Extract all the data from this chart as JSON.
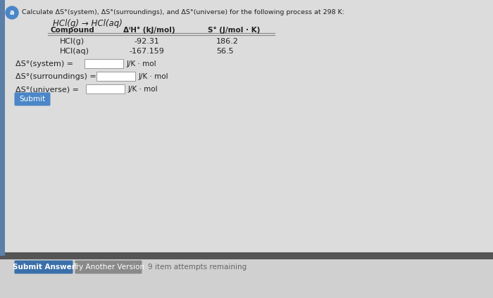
{
  "bg_upper": "#dcdcdc",
  "bg_lower": "#d0d0d0",
  "divider_color": "#555555",
  "left_bar_color": "#5a7fa8",
  "title_circle_color": "#4a86c8",
  "title_label": "a",
  "header_text": "Calculate ΔS°(system), ΔS°(surroundings), and ΔS°(universe) for the following process at 298 K:",
  "reaction": "HCl(g) → HCl(aq)",
  "col_compound": "Compound",
  "col_dH": "ΔⁱH° (kJ/mol)",
  "col_S": "S° (J/mol · K)",
  "row1_compound": "HCl(g)",
  "row1_dH": "-92.31",
  "row1_S": "186.2",
  "row2_compound": "HCl(aq)",
  "row2_dH": "-167.159",
  "row2_S": "56.5",
  "label_system": "ΔS°(system) =",
  "label_surroundings": "ΔS°(surroundings) =",
  "label_universe": "ΔS°(universe) =",
  "unit": "J/K · mol",
  "submit_text": "Submit",
  "submit_color": "#4a86c8",
  "submit_answer_text": "Submit Answer",
  "submit_answer_color": "#3a6faa",
  "try_another_text": "Try Another Version",
  "try_another_color": "#8a8a8a",
  "attempts_text": "9 item attempts remaining",
  "text_color": "#222222",
  "input_bg": "#ffffff",
  "input_border": "#999999"
}
